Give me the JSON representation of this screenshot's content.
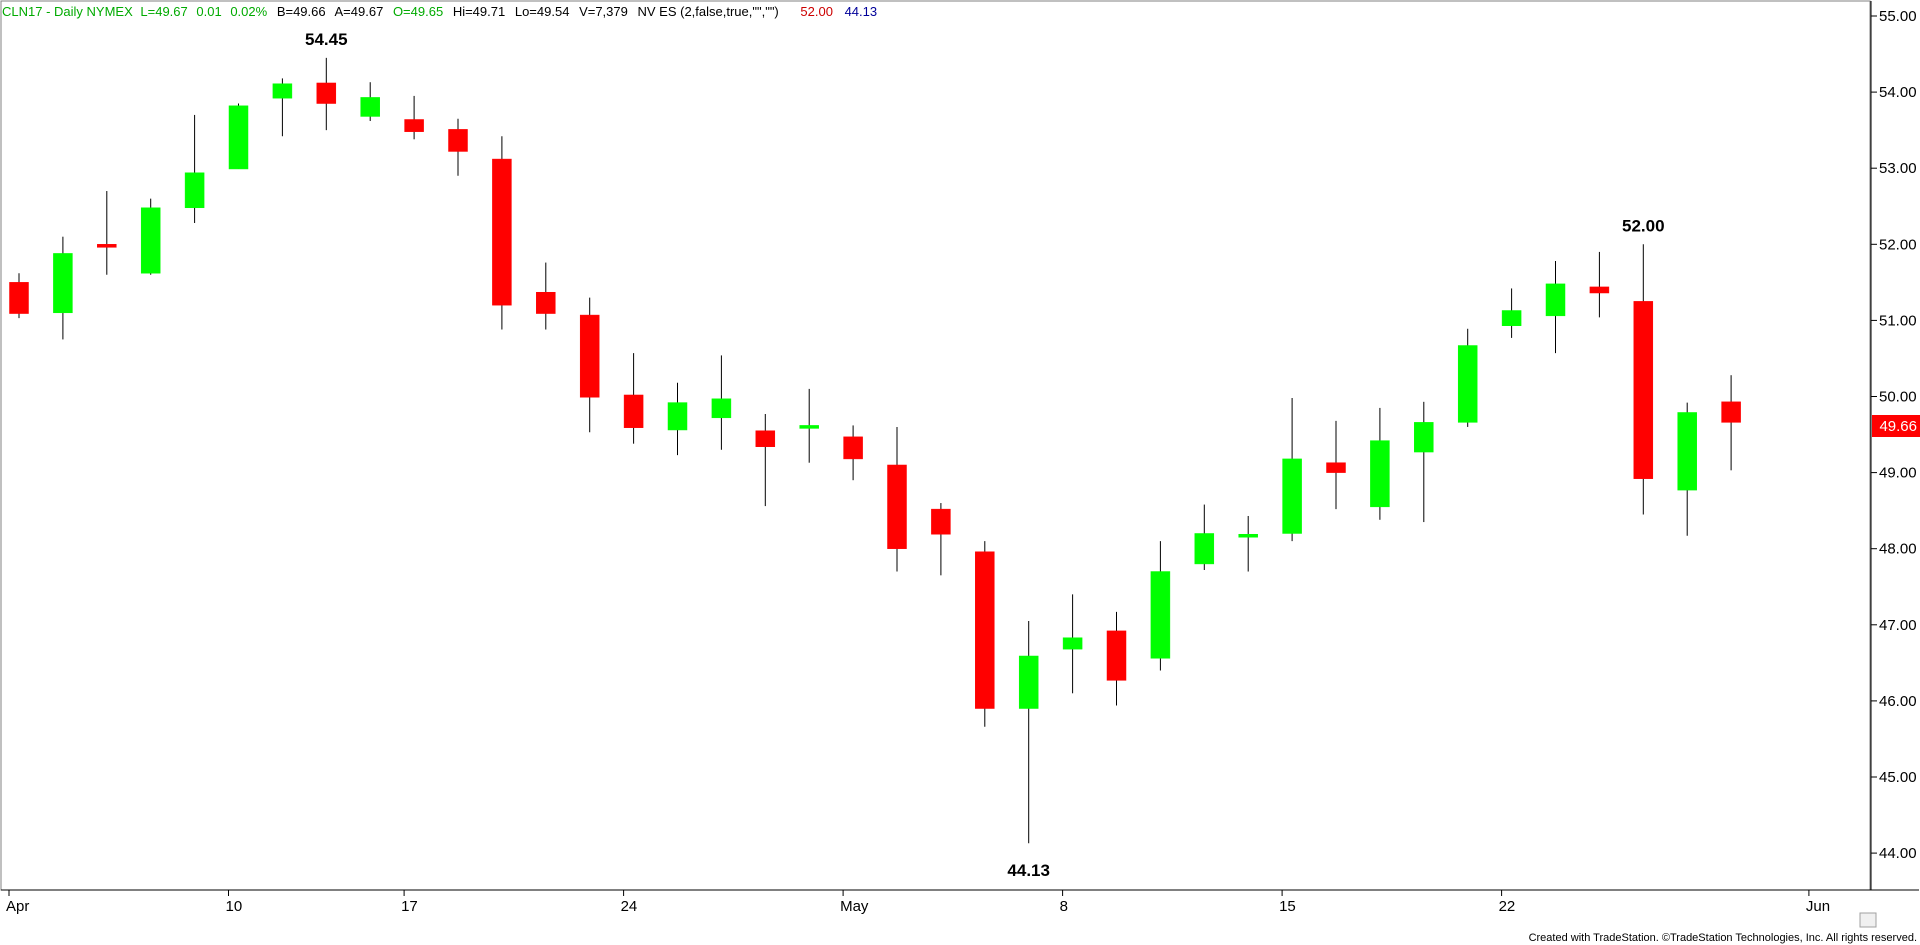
{
  "header": {
    "symbol_info": "CLN17 - Daily NYMEX",
    "last": "L=49.67",
    "change": "0.01",
    "change_pct": "0.02%",
    "bid": "B=49.66",
    "ask": "A=49.67",
    "open": "O=49.65",
    "high": "Hi=49.71",
    "low": "Lo=49.54",
    "volume": "V=7,379",
    "indicator": "NV ES (2,false,true,\"\",\"\")",
    "ind_high": "52.00",
    "ind_low": "44.13",
    "colors": {
      "symbol": "#00aa00",
      "ind_high": "#cc0000",
      "ind_low": "#000099"
    }
  },
  "footer": {
    "credit": "Created with TradeStation. ©TradeStation Technologies, Inc. All rights reserved."
  },
  "chart_data": {
    "type": "candlestick",
    "yticks": [
      "44.00",
      "45.00",
      "46.00",
      "47.00",
      "48.00",
      "49.00",
      "50.00",
      "51.00",
      "52.00",
      "53.00",
      "54.00",
      "55.00"
    ],
    "ylim": [
      43.8,
      55.2
    ],
    "last_price_label": "49.66",
    "xticks": [
      {
        "label": "Apr",
        "index": 0
      },
      {
        "label": "10",
        "index": 5
      },
      {
        "label": "17",
        "index": 9
      },
      {
        "label": "24",
        "index": 14
      },
      {
        "label": "May",
        "index": 19
      },
      {
        "label": "8",
        "index": 24
      },
      {
        "label": "15",
        "index": 29
      },
      {
        "label": "22",
        "index": 34
      },
      {
        "label": "Jun",
        "index": 41
      }
    ],
    "annotations": [
      {
        "text": "54.45",
        "index": 7,
        "value": 54.45,
        "position": "above"
      },
      {
        "text": "44.13",
        "index": 23,
        "value": 44.13,
        "position": "below"
      },
      {
        "text": "52.00",
        "index": 37,
        "value": 52.0,
        "position": "above"
      }
    ],
    "candles": [
      {
        "o": 51.5,
        "h": 51.62,
        "l": 51.03,
        "c": 51.09
      },
      {
        "o": 51.1,
        "h": 52.1,
        "l": 50.75,
        "c": 51.88
      },
      {
        "o": 52.0,
        "h": 52.7,
        "l": 51.6,
        "c": 51.96
      },
      {
        "o": 51.62,
        "h": 52.6,
        "l": 51.6,
        "c": 52.48
      },
      {
        "o": 52.48,
        "h": 53.7,
        "l": 52.28,
        "c": 52.94
      },
      {
        "o": 52.99,
        "h": 53.85,
        "l": 52.99,
        "c": 53.82
      },
      {
        "o": 53.92,
        "h": 54.18,
        "l": 53.42,
        "c": 54.11
      },
      {
        "o": 54.12,
        "h": 54.45,
        "l": 53.5,
        "c": 53.85
      },
      {
        "o": 53.68,
        "h": 54.13,
        "l": 53.62,
        "c": 53.93
      },
      {
        "o": 53.64,
        "h": 53.95,
        "l": 53.38,
        "c": 53.48
      },
      {
        "o": 53.51,
        "h": 53.65,
        "l": 52.9,
        "c": 53.22
      },
      {
        "o": 53.12,
        "h": 53.42,
        "l": 50.88,
        "c": 51.2
      },
      {
        "o": 51.37,
        "h": 51.76,
        "l": 50.88,
        "c": 51.09
      },
      {
        "o": 51.07,
        "h": 51.3,
        "l": 49.53,
        "c": 49.99
      },
      {
        "o": 50.02,
        "h": 50.57,
        "l": 49.38,
        "c": 49.59
      },
      {
        "o": 49.56,
        "h": 50.18,
        "l": 49.23,
        "c": 49.92
      },
      {
        "o": 49.72,
        "h": 50.54,
        "l": 49.3,
        "c": 49.97
      },
      {
        "o": 49.55,
        "h": 49.77,
        "l": 48.56,
        "c": 49.34
      },
      {
        "o": 49.6,
        "h": 50.1,
        "l": 49.13,
        "c": 49.62
      },
      {
        "o": 49.47,
        "h": 49.62,
        "l": 48.9,
        "c": 49.18
      },
      {
        "o": 49.1,
        "h": 49.6,
        "l": 47.7,
        "c": 48.0
      },
      {
        "o": 48.52,
        "h": 48.6,
        "l": 47.65,
        "c": 48.19
      },
      {
        "o": 47.96,
        "h": 48.1,
        "l": 45.66,
        "c": 45.9
      },
      {
        "o": 45.9,
        "h": 47.05,
        "l": 44.13,
        "c": 46.59
      },
      {
        "o": 46.68,
        "h": 47.4,
        "l": 46.1,
        "c": 46.83
      },
      {
        "o": 46.92,
        "h": 47.17,
        "l": 45.94,
        "c": 46.27
      },
      {
        "o": 46.56,
        "h": 48.1,
        "l": 46.4,
        "c": 47.7
      },
      {
        "o": 47.8,
        "h": 48.58,
        "l": 47.72,
        "c": 48.2
      },
      {
        "o": 48.17,
        "h": 48.43,
        "l": 47.7,
        "c": 48.19
      },
      {
        "o": 48.2,
        "h": 49.98,
        "l": 48.1,
        "c": 49.18
      },
      {
        "o": 49.13,
        "h": 49.68,
        "l": 48.52,
        "c": 49.0
      },
      {
        "o": 48.55,
        "h": 49.85,
        "l": 48.38,
        "c": 49.42
      },
      {
        "o": 49.27,
        "h": 49.93,
        "l": 48.35,
        "c": 49.66
      },
      {
        "o": 49.66,
        "h": 50.89,
        "l": 49.6,
        "c": 50.67
      },
      {
        "o": 50.93,
        "h": 51.42,
        "l": 50.77,
        "c": 51.13
      },
      {
        "o": 51.06,
        "h": 51.78,
        "l": 50.57,
        "c": 51.48
      },
      {
        "o": 51.44,
        "h": 51.9,
        "l": 51.04,
        "c": 51.36
      },
      {
        "o": 51.25,
        "h": 52.0,
        "l": 48.45,
        "c": 48.92
      },
      {
        "o": 48.77,
        "h": 49.92,
        "l": 48.17,
        "c": 49.79
      },
      {
        "o": 49.93,
        "h": 50.28,
        "l": 49.03,
        "c": 49.66
      }
    ]
  }
}
